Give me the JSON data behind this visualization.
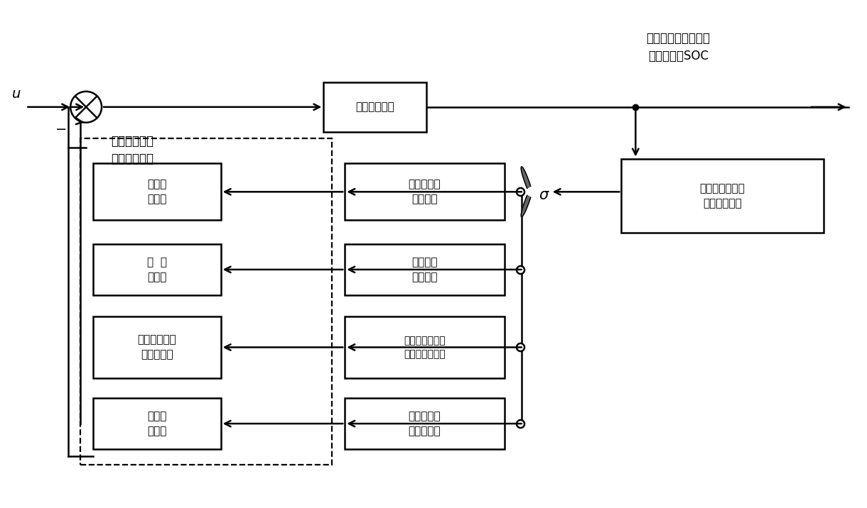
{
  "bg_color": "#ffffff",
  "line_color": "#000000",
  "title_text": "燃油消耗率、发动机\n转速、电池SOC",
  "u_label": "u",
  "minus_label": "−",
  "box_hybrid": "混合动力汽车",
  "box_switch_rule": "以行驶路况为驱\n动的切换规则",
  "box_controller_label": "多模型切换能\n量管理控制器",
  "mode_boxes": [
    "发动机驱动\n工作模式",
    "电机驱动\n工作模式",
    "发动机和电机混\n合驱动工作模式",
    "能量回馈制\n动工作模式"
  ],
  "ctrl_boxes": [
    "发动机\n控制器",
    "电  机\n控制器",
    "发动机、电机\n混合控制器",
    "发动机\n控制器"
  ],
  "figsize": [
    12.2,
    7.16
  ],
  "dpi": 100
}
